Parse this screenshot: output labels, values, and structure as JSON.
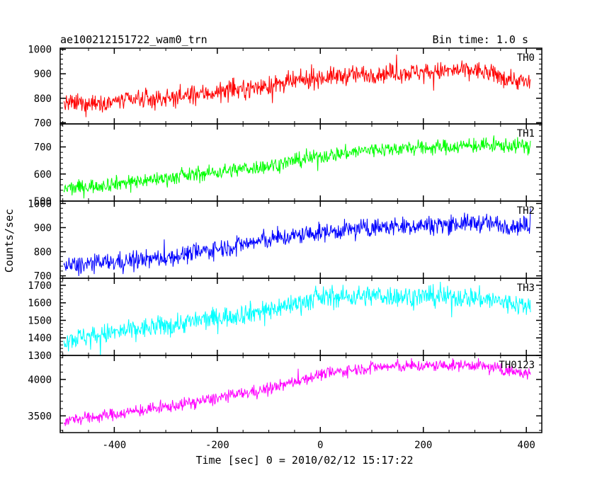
{
  "header": {
    "title": "ae100212151722_wam0_trn",
    "bin_time": "Bin time: 1.0 s"
  },
  "chart_data": {
    "type": "line",
    "xlabel": "Time [sec] 0 = 2010/02/12 15:17:22",
    "ylabel": "Counts/sec",
    "xlim": [
      -505,
      430
    ],
    "xticks": [
      -400,
      -200,
      0,
      200,
      400
    ],
    "x_range_data": [
      -498,
      408
    ],
    "grid": false,
    "panels": [
      {
        "label": "TH0",
        "color": "#ff0000",
        "ylim": [
          695,
          1005
        ],
        "yticks": [
          700,
          800,
          900,
          1000
        ],
        "trend": [
          [
            -498,
            775
          ],
          [
            -300,
            800
          ],
          [
            -100,
            850
          ],
          [
            0,
            885
          ],
          [
            100,
            900
          ],
          [
            300,
            915
          ],
          [
            408,
            860
          ]
        ],
        "noise": 35
      },
      {
        "label": "TH1",
        "color": "#00ff00",
        "ylim": [
          500,
          785
        ],
        "yticks": [
          500,
          600,
          700
        ],
        "trend": [
          [
            -498,
            545
          ],
          [
            -300,
            585
          ],
          [
            -100,
            630
          ],
          [
            0,
            665
          ],
          [
            100,
            690
          ],
          [
            300,
            705
          ],
          [
            408,
            705
          ]
        ],
        "noise": 25
      },
      {
        "label": "TH2",
        "color": "#0000ff",
        "ylim": [
          690,
          1010
        ],
        "yticks": [
          700,
          800,
          900,
          1000
        ],
        "trend": [
          [
            -498,
            740
          ],
          [
            -300,
            775
          ],
          [
            -100,
            850
          ],
          [
            0,
            880
          ],
          [
            100,
            900
          ],
          [
            300,
            920
          ],
          [
            408,
            905
          ]
        ],
        "noise": 35
      },
      {
        "label": "TH3",
        "color": "#00ffff",
        "ylim": [
          1300,
          1740
        ],
        "yticks": [
          1300,
          1400,
          1500,
          1600,
          1700
        ],
        "trend": [
          [
            -498,
            1390
          ],
          [
            -300,
            1470
          ],
          [
            -100,
            1560
          ],
          [
            0,
            1630
          ],
          [
            100,
            1640
          ],
          [
            300,
            1630
          ],
          [
            408,
            1580
          ]
        ],
        "noise": 55
      },
      {
        "label": "TH0123",
        "color": "#ff00ff",
        "ylim": [
          3270,
          4330
        ],
        "yticks": [
          3500,
          4000
        ],
        "trend": [
          [
            -498,
            3430
          ],
          [
            -300,
            3620
          ],
          [
            -100,
            3870
          ],
          [
            0,
            4070
          ],
          [
            100,
            4170
          ],
          [
            300,
            4200
          ],
          [
            408,
            4070
          ]
        ],
        "noise": 75
      }
    ]
  }
}
